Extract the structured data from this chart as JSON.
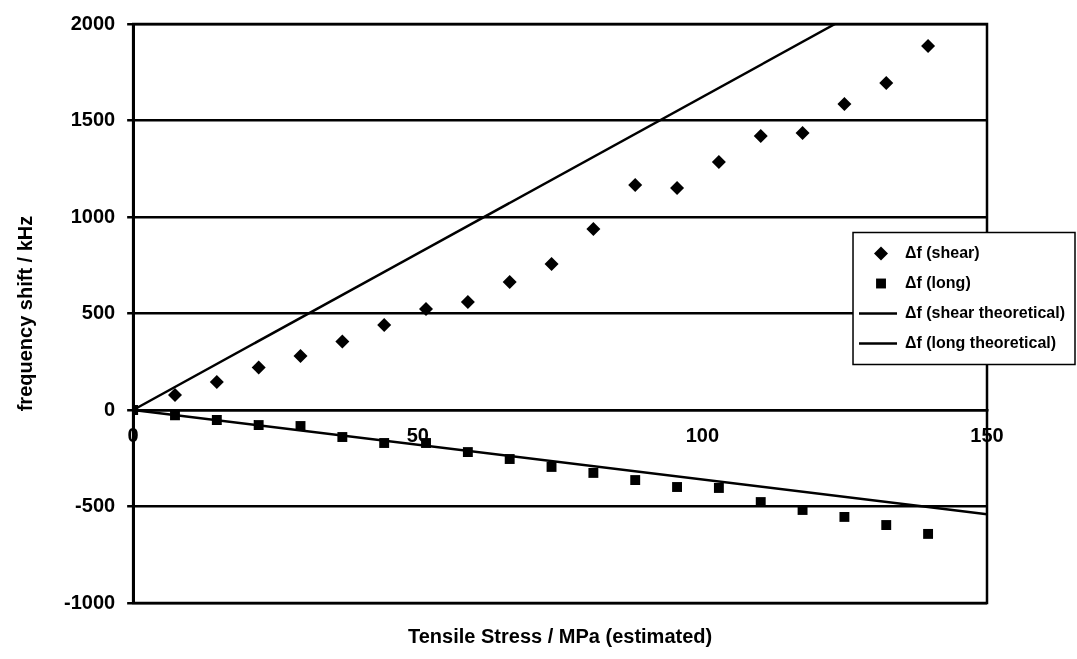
{
  "chart_data": {
    "type": "scatter",
    "xlabel": "Tensile Stress / MPa (estimated)",
    "ylabel": "frequency shift / kHz",
    "xlim": [
      0,
      150
    ],
    "xticks": [
      0,
      50,
      100,
      150
    ],
    "ylim": [
      -1000,
      2000
    ],
    "yticks": [
      -1000,
      -500,
      0,
      500,
      1000,
      1500,
      2000
    ],
    "grid": "y",
    "legend": "right",
    "series": [
      {
        "name": "Δf (shear)",
        "marker": "diamond",
        "color": "#000000",
        "x": [
          7.35,
          14.7,
          22.05,
          29.4,
          36.75,
          44.1,
          51.45,
          58.8,
          66.15,
          73.5,
          80.85,
          88.2,
          95.55,
          102.9,
          110.25,
          117.6,
          124.95,
          132.3,
          139.65
        ],
        "values": [
          78,
          145,
          220,
          280,
          355,
          440,
          523,
          560,
          663,
          756,
          938,
          1166,
          1150,
          1285,
          1420,
          1435,
          1585,
          1694,
          1886
        ]
      },
      {
        "name": "Δf (long)",
        "marker": "square",
        "color": "#000000",
        "x": [
          0,
          7.35,
          14.7,
          22.05,
          29.4,
          36.75,
          44.1,
          51.45,
          58.8,
          66.15,
          73.5,
          80.85,
          88.2,
          95.55,
          102.9,
          110.25,
          117.6,
          124.95,
          132.3,
          139.65
        ],
        "values": [
          0,
          -28,
          -52,
          -78,
          -83,
          -140,
          -171,
          -171,
          -218,
          -254,
          -295,
          -326,
          -363,
          -399,
          -404,
          -477,
          -518,
          -554,
          -596,
          -642
        ]
      },
      {
        "name": "Δf (shear theoretical)",
        "type": "line",
        "marker": "none",
        "color": "#000000",
        "x": [
          0,
          123.3
        ],
        "values": [
          0,
          2000
        ]
      },
      {
        "name": "Δf (long theoretical)",
        "type": "line",
        "marker": "none",
        "color": "#000000",
        "x": [
          0,
          150
        ],
        "values": [
          0,
          -540
        ]
      }
    ]
  }
}
